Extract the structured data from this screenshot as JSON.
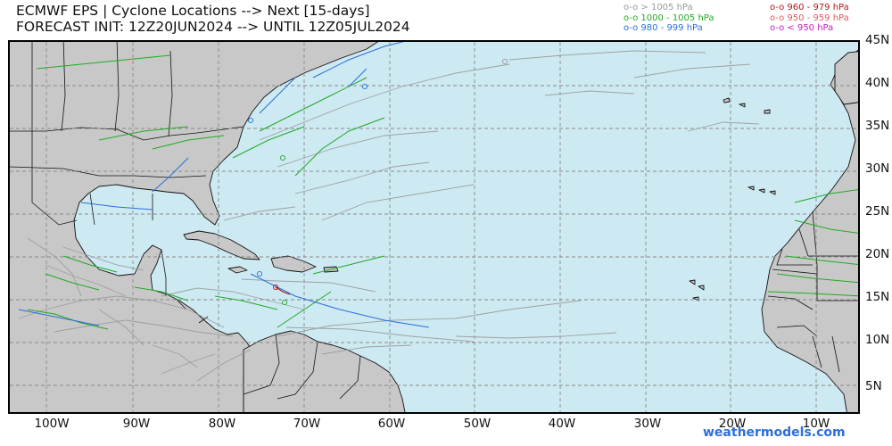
{
  "title": {
    "line1": "ECMWF EPS | Cyclone Locations --> Next [15-days]",
    "line2": "FORECAST INIT: 12Z20JUN2024 --> UNTIL 12Z05JUL2024"
  },
  "legend": {
    "left": [
      {
        "label": "o-o > 1005 hPa",
        "color": "#9a9a9a"
      },
      {
        "label": "o-o 1000 - 1005 hPa",
        "color": "#22aa22"
      },
      {
        "label": "o-o 980 - 999 hPa",
        "color": "#2a6fdb"
      }
    ],
    "right": [
      {
        "label": "o-o 960 - 979 hPa",
        "color": "#b01818"
      },
      {
        "label": "o-o 950 - 959 hPa",
        "color": "#e05a5a"
      },
      {
        "label": "o-o < 950 hPa",
        "color": "#c020c0"
      }
    ]
  },
  "axes": {
    "lat_labels": [
      "45N",
      "40N",
      "35N",
      "30N",
      "25N",
      "20N",
      "15N",
      "10N",
      "5N"
    ],
    "lon_labels": [
      "100W",
      "90W",
      "80W",
      "70W",
      "60W",
      "50W",
      "40W",
      "30W",
      "20W",
      "10W"
    ]
  },
  "credit": "weathermodels.com",
  "colors": {
    "ocean": "#cde9f2",
    "land": "#c8c8c8",
    "border": "#111111",
    "grid": "#8a8a8a"
  }
}
